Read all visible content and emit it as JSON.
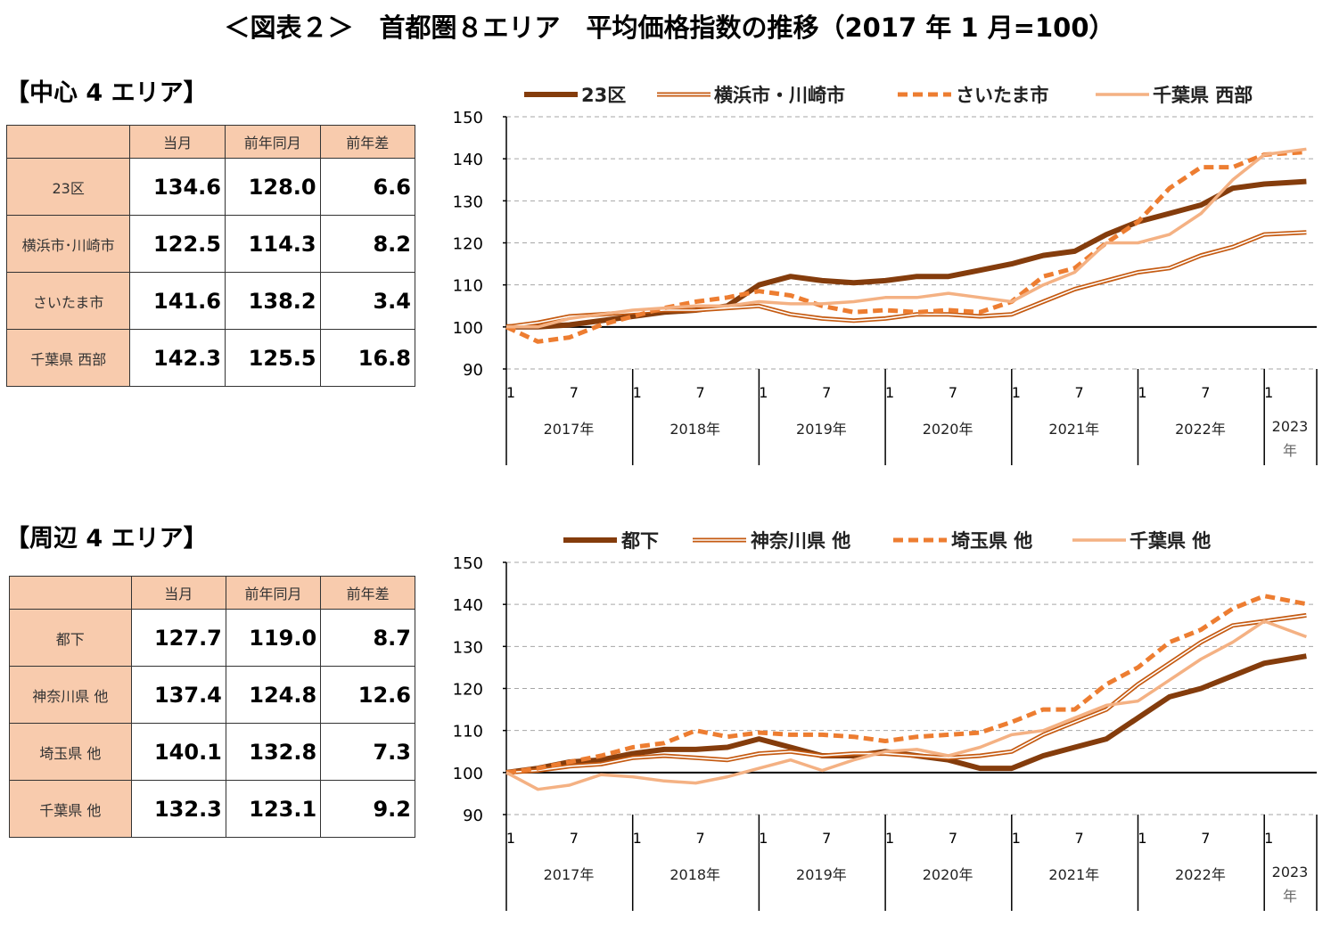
{
  "title": "＜図表２＞　首都圏８エリア　平均価格指数の推移（2017 年 1 月=100）",
  "colors": {
    "series1": "#843C0C",
    "series2": "#C55A11",
    "series3": "#ED7D31",
    "series4": "#F4B183",
    "table_header": "#F8CBAD"
  },
  "sections": [
    {
      "heading": "【中心 4 エリア】",
      "table": {
        "columns": [
          "",
          "当月",
          "前年同月",
          "前年差"
        ],
        "rows": [
          {
            "label": "23区",
            "current": "134.6",
            "prev_year": "128.0",
            "diff": "6.6"
          },
          {
            "label": "横浜市･川崎市",
            "current": "122.5",
            "prev_year": "114.3",
            "diff": "8.2"
          },
          {
            "label": "さいたま市",
            "current": "141.6",
            "prev_year": "138.2",
            "diff": "3.4"
          },
          {
            "label": "千葉県 西部",
            "current": "142.3",
            "prev_year": "125.5",
            "diff": "16.8"
          }
        ]
      }
    },
    {
      "heading": "【周辺 4 エリア】",
      "table": {
        "columns": [
          "",
          "当月",
          "前年同月",
          "前年差"
        ],
        "rows": [
          {
            "label": "都下",
            "current": "127.7",
            "prev_year": "119.0",
            "diff": "8.7"
          },
          {
            "label": "神奈川県 他",
            "current": "137.4",
            "prev_year": "124.8",
            "diff": "12.6"
          },
          {
            "label": "埼玉県 他",
            "current": "140.1",
            "prev_year": "132.8",
            "diff": "7.3"
          },
          {
            "label": "千葉県 他",
            "current": "132.3",
            "prev_year": "123.1",
            "diff": "9.2"
          }
        ]
      }
    }
  ],
  "chart_data": [
    {
      "type": "line",
      "ylim": [
        90,
        150
      ],
      "yticks": [
        "90",
        "100",
        "110",
        "120",
        "130",
        "140",
        "150"
      ],
      "grid": true,
      "legend": "top",
      "x": [
        "2017-01",
        "2017-04",
        "2017-07",
        "2017-10",
        "2018-01",
        "2018-04",
        "2018-07",
        "2018-10",
        "2019-01",
        "2019-04",
        "2019-07",
        "2019-10",
        "2020-01",
        "2020-04",
        "2020-07",
        "2020-10",
        "2021-01",
        "2021-04",
        "2021-07",
        "2021-10",
        "2022-01",
        "2022-04",
        "2022-07",
        "2022-10",
        "2023-01",
        "2023-05"
      ],
      "month_ticks": [
        "1",
        "7"
      ],
      "year_labels": [
        "2017年",
        "2018年",
        "2019年",
        "2020年",
        "2021年",
        "2022年",
        "2023",
        "年"
      ],
      "series": [
        {
          "name": "23区",
          "style": "thick",
          "values": [
            100,
            100,
            100.5,
            101.5,
            102.5,
            103.5,
            104,
            105,
            110,
            112,
            111,
            110.5,
            111,
            112,
            112,
            113.5,
            115,
            117,
            118,
            122,
            125,
            127,
            129,
            133,
            134,
            134.6
          ]
        },
        {
          "name": "横浜市・川崎市",
          "style": "double",
          "values": [
            100,
            101,
            102.5,
            103,
            103.5,
            104,
            104,
            104.5,
            105,
            103,
            102,
            101.5,
            102,
            103,
            103,
            102.5,
            103,
            106,
            109,
            111,
            113,
            114,
            117,
            119,
            122,
            122.5
          ]
        },
        {
          "name": "さいたま市",
          "style": "dashed",
          "values": [
            100,
            96.5,
            97.5,
            100.5,
            102.5,
            104.5,
            106,
            107,
            108.5,
            107.5,
            105,
            103.5,
            104,
            103.5,
            104,
            103.5,
            106,
            112,
            114,
            120,
            125,
            133,
            138,
            138,
            141,
            141.6
          ]
        },
        {
          "name": "千葉県 西部",
          "style": "light",
          "values": [
            100,
            100,
            102,
            103,
            104,
            104.5,
            105,
            105,
            106,
            105.5,
            105.5,
            106,
            107,
            107,
            108,
            107,
            106,
            110,
            113,
            120,
            120,
            122,
            127,
            135,
            141,
            142.3
          ]
        }
      ]
    },
    {
      "type": "line",
      "ylim": [
        90,
        150
      ],
      "yticks": [
        "90",
        "100",
        "110",
        "120",
        "130",
        "140",
        "150"
      ],
      "grid": true,
      "legend": "top",
      "x": [
        "2017-01",
        "2017-04",
        "2017-07",
        "2017-10",
        "2018-01",
        "2018-04",
        "2018-07",
        "2018-10",
        "2019-01",
        "2019-04",
        "2019-07",
        "2019-10",
        "2020-01",
        "2020-04",
        "2020-07",
        "2020-10",
        "2021-01",
        "2021-04",
        "2021-07",
        "2021-10",
        "2022-01",
        "2022-04",
        "2022-07",
        "2022-10",
        "2023-01",
        "2023-05"
      ],
      "month_ticks": [
        "1",
        "7"
      ],
      "year_labels": [
        "2017年",
        "2018年",
        "2019年",
        "2020年",
        "2021年",
        "2022年",
        "2023",
        "年"
      ],
      "series": [
        {
          "name": "都下",
          "style": "thick",
          "values": [
            100,
            101,
            102.5,
            103,
            104.5,
            105.5,
            105.5,
            106,
            108,
            106,
            104,
            104,
            105,
            104,
            103,
            101,
            101,
            104,
            106,
            108,
            113,
            118,
            120,
            123,
            126,
            127.7
          ]
        },
        {
          "name": "神奈川県 他",
          "style": "double",
          "values": [
            100,
            100.5,
            101.5,
            102,
            103.5,
            104,
            103.5,
            103,
            104.5,
            105,
            104,
            104.5,
            104.5,
            104,
            103.5,
            104,
            105,
            109,
            112,
            115,
            121,
            126,
            131,
            135,
            136,
            137.4
          ]
        },
        {
          "name": "埼玉県 他",
          "style": "dashed",
          "values": [
            100,
            101,
            102.5,
            104,
            106,
            107,
            110,
            108.5,
            109.5,
            109,
            109,
            108.5,
            107.5,
            108.5,
            109,
            109.5,
            112,
            115,
            115,
            121,
            125,
            131,
            134,
            139,
            142,
            140.1
          ]
        },
        {
          "name": "千葉県 他",
          "style": "light",
          "values": [
            100,
            96,
            97,
            99.5,
            99,
            98,
            97.5,
            99,
            101,
            103,
            100.5,
            103,
            105,
            105.5,
            104,
            106,
            109,
            110,
            113,
            116,
            117,
            122,
            127,
            131,
            136,
            132.3
          ]
        }
      ]
    }
  ]
}
